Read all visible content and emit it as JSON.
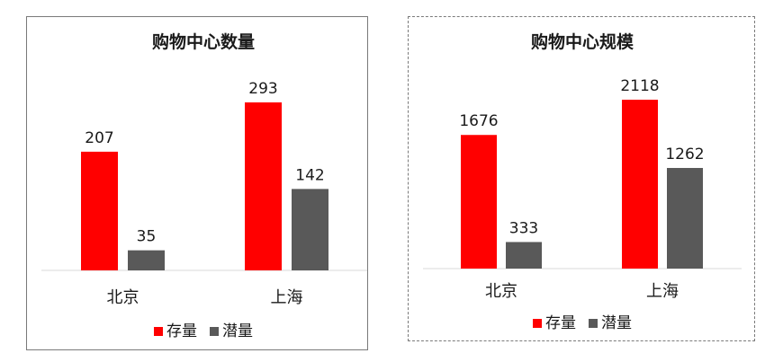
{
  "chart_data": [
    {
      "type": "bar",
      "title": "购物中心数量",
      "categories": [
        "北京",
        "上海"
      ],
      "series": [
        {
          "name": "存量",
          "values": [
            207,
            293
          ],
          "color": "#ff0000"
        },
        {
          "name": "潜量",
          "values": [
            35,
            142
          ],
          "color": "#595959"
        }
      ],
      "ylim": [
        0,
        293
      ],
      "grid": false,
      "legend": "bottom"
    },
    {
      "type": "bar",
      "title": "购物中心规模",
      "categories": [
        "北京",
        "上海"
      ],
      "series": [
        {
          "name": "存量",
          "values": [
            1676,
            2118
          ],
          "color": "#ff0000"
        },
        {
          "name": "潜量",
          "values": [
            333,
            1262
          ],
          "color": "#595959"
        }
      ],
      "ylim": [
        0,
        2118
      ],
      "grid": false,
      "legend": "bottom"
    }
  ]
}
